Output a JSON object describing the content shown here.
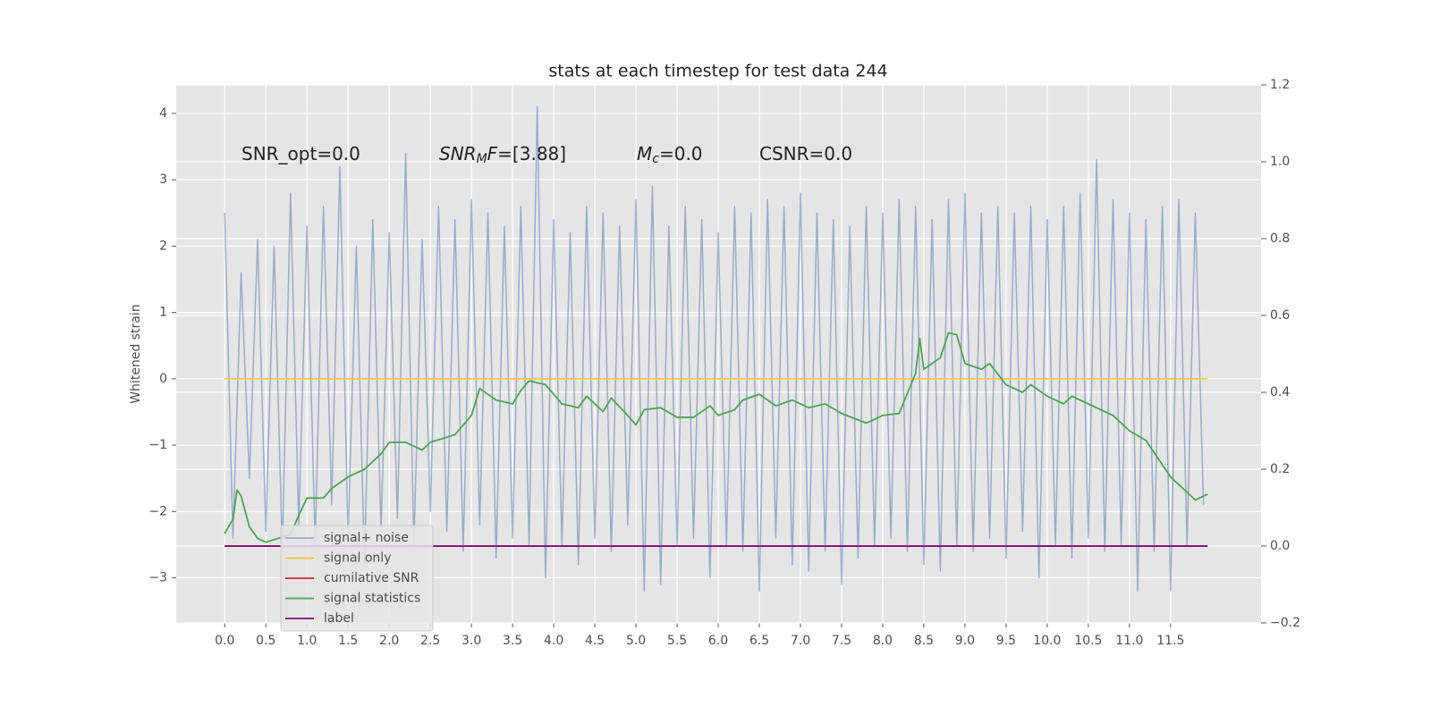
{
  "chart_data": {
    "type": "line",
    "title": "stats at each timestep for test data 244",
    "y_label": "Whitened strain",
    "annotations": [
      [
        {
          "t": "SNR_opt=0.0"
        }
      ],
      [
        {
          "t": "SNR",
          "i": true
        },
        {
          "t": "M",
          "i": true,
          "sub": true
        },
        {
          "t": "F",
          "i": true
        },
        {
          "t": "=[3.88]"
        }
      ],
      [
        {
          "t": "M",
          "i": true
        },
        {
          "t": "c",
          "i": true,
          "sub": true
        },
        {
          "t": "=0.0"
        }
      ],
      [
        {
          "t": "CSNR=0.0"
        }
      ]
    ],
    "xlim": [
      -0.59,
      12.6
    ],
    "ylim": [
      -3.68,
      4.43
    ],
    "y2lim": [
      -0.2,
      1.2
    ],
    "xticks": [
      {
        "value": 0,
        "label": "0.0"
      },
      0.5,
      {
        "value": 1,
        "label": "1.0"
      },
      1.5,
      {
        "value": 2,
        "label": "2.0"
      },
      2.5,
      {
        "value": 3,
        "label": "3.0"
      },
      3.5,
      {
        "value": 4,
        "label": "4.0"
      },
      4.5,
      {
        "value": 5,
        "label": "5.0"
      },
      5.5,
      {
        "value": 6,
        "label": "6.0"
      },
      6.5,
      {
        "value": 7,
        "label": "7.0"
      },
      7.5,
      {
        "value": 8,
        "label": "8.0"
      },
      8.5,
      {
        "value": 9,
        "label": "9.0"
      },
      9.5,
      {
        "value": 10,
        "label": "10.0"
      },
      10.5,
      {
        "value": 11,
        "label": "11.0"
      },
      11.5
    ],
    "yticks": [
      {
        "value": -3,
        "label": "−3"
      },
      {
        "value": -2,
        "label": "−2"
      },
      {
        "value": -1,
        "label": "−1"
      },
      0,
      1,
      2,
      3,
      4
    ],
    "y2ticks": [
      {
        "value": -0.2,
        "label": "−0.2"
      },
      {
        "value": 0,
        "label": "0.0"
      },
      0.2,
      0.4,
      0.6,
      0.8,
      {
        "value": 1,
        "label": "1.0"
      },
      1.2
    ],
    "grid": true,
    "legend": "lower left",
    "series": [
      {
        "name": "signal+ noise",
        "color": "#4c72b0",
        "alpha": 0.5,
        "x": [
          0.0,
          0.1,
          0.2,
          0.3,
          0.4,
          0.5,
          0.6,
          0.7,
          0.8,
          0.9,
          1.0,
          1.1,
          1.2,
          1.3,
          1.4,
          1.5,
          1.6,
          1.7,
          1.8,
          1.9,
          2.0,
          2.1,
          2.2,
          2.3,
          2.4,
          2.5,
          2.6,
          2.7,
          2.8,
          2.9,
          3.0,
          3.1,
          3.2,
          3.3,
          3.4,
          3.5,
          3.6,
          3.7,
          3.8,
          3.9,
          4.0,
          4.1,
          4.2,
          4.3,
          4.4,
          4.5,
          4.6,
          4.7,
          4.8,
          4.9,
          5.0,
          5.1,
          5.2,
          5.3,
          5.4,
          5.5,
          5.6,
          5.7,
          5.8,
          5.9,
          6.0,
          6.1,
          6.2,
          6.3,
          6.4,
          6.5,
          6.6,
          6.7,
          6.8,
          6.9,
          7.0,
          7.1,
          7.2,
          7.3,
          7.4,
          7.5,
          7.6,
          7.7,
          7.8,
          7.9,
          8.0,
          8.1,
          8.2,
          8.3,
          8.4,
          8.5,
          8.6,
          8.7,
          8.8,
          8.9,
          9.0,
          9.1,
          9.2,
          9.3,
          9.4,
          9.5,
          9.6,
          9.7,
          9.8,
          9.9,
          10.0,
          10.1,
          10.2,
          10.3,
          10.4,
          10.5,
          10.6,
          10.7,
          10.8,
          10.9,
          11.0,
          11.1,
          11.2,
          11.3,
          11.4,
          11.5,
          11.6,
          11.7,
          11.8,
          11.9
        ],
        "values": [
          2.5,
          -2.4,
          1.6,
          -1.5,
          2.1,
          -2.3,
          2.0,
          -2.6,
          2.8,
          -2.2,
          2.3,
          -2.5,
          2.6,
          -1.9,
          3.2,
          -2.4,
          2.0,
          -2.8,
          2.4,
          -2.3,
          2.2,
          -2.1,
          3.4,
          -2.5,
          2.1,
          -2.0,
          2.6,
          -2.3,
          2.4,
          -2.6,
          2.7,
          -2.2,
          2.5,
          -2.7,
          2.3,
          -2.4,
          2.6,
          -2.5,
          4.1,
          -3.0,
          2.4,
          -2.5,
          2.2,
          -2.8,
          2.6,
          -2.4,
          2.5,
          -2.6,
          2.3,
          -2.2,
          2.7,
          -3.2,
          2.9,
          -3.1,
          2.3,
          -2.5,
          2.6,
          -2.4,
          2.4,
          -3.0,
          2.2,
          -2.5,
          2.6,
          -2.6,
          2.5,
          -3.2,
          2.7,
          -2.4,
          2.6,
          -2.8,
          2.8,
          -2.9,
          2.5,
          -2.6,
          2.4,
          -3.1,
          2.3,
          -2.7,
          2.6,
          -2.5,
          2.5,
          -2.4,
          2.7,
          -2.6,
          2.6,
          -2.8,
          2.4,
          -2.9,
          2.7,
          -2.5,
          2.8,
          -2.6,
          2.5,
          -2.4,
          2.6,
          -2.7,
          2.5,
          -2.3,
          2.6,
          -3.0,
          2.4,
          -2.5,
          2.6,
          -2.7,
          2.8,
          -2.4,
          3.3,
          -2.6,
          2.7,
          -2.5,
          2.5,
          -3.2,
          2.4,
          -2.6,
          2.6,
          -3.2,
          2.7,
          -2.5,
          2.5,
          -1.9
        ]
      },
      {
        "name": "signal only",
        "color": "#ffc13b",
        "x": [
          0,
          11.95
        ],
        "values": [
          0,
          0
        ]
      },
      {
        "name": "cumilative SNR",
        "color": "#d62728",
        "axis": "y2",
        "x": [
          0,
          11.95
        ],
        "values": [
          0,
          0
        ]
      },
      {
        "name": "signal statistics",
        "color": "#4aa551",
        "axis": "y2",
        "x": [
          0,
          0.1,
          0.15,
          0.2,
          0.3,
          0.4,
          0.5,
          0.8,
          0.9,
          1.0,
          1.2,
          1.3,
          1.5,
          1.7,
          1.9,
          2.0,
          2.2,
          2.4,
          2.5,
          2.8,
          3.0,
          3.1,
          3.3,
          3.5,
          3.6,
          3.7,
          3.9,
          4.1,
          4.3,
          4.4,
          4.6,
          4.7,
          4.9,
          5.0,
          5.1,
          5.3,
          5.5,
          5.7,
          5.9,
          6.0,
          6.2,
          6.3,
          6.5,
          6.7,
          6.9,
          7.1,
          7.3,
          7.5,
          7.8,
          8.0,
          8.2,
          8.4,
          8.45,
          8.5,
          8.7,
          8.8,
          8.9,
          9.0,
          9.2,
          9.3,
          9.5,
          9.7,
          9.8,
          10.0,
          10.2,
          10.3,
          10.5,
          10.8,
          11.0,
          11.2,
          11.5,
          11.8,
          11.95
        ],
        "values": [
          0.033,
          0.07,
          0.146,
          0.13,
          0.05,
          0.02,
          0.01,
          0.03,
          0.08,
          0.125,
          0.125,
          0.15,
          0.18,
          0.2,
          0.24,
          0.27,
          0.27,
          0.25,
          0.27,
          0.29,
          0.34,
          0.41,
          0.38,
          0.37,
          0.405,
          0.43,
          0.42,
          0.37,
          0.36,
          0.39,
          0.35,
          0.385,
          0.34,
          0.315,
          0.355,
          0.36,
          0.335,
          0.335,
          0.365,
          0.34,
          0.355,
          0.38,
          0.395,
          0.365,
          0.38,
          0.36,
          0.37,
          0.345,
          0.32,
          0.34,
          0.345,
          0.45,
          0.54,
          0.46,
          0.49,
          0.555,
          0.55,
          0.475,
          0.46,
          0.475,
          0.42,
          0.4,
          0.42,
          0.39,
          0.37,
          0.39,
          0.37,
          0.34,
          0.3,
          0.275,
          0.18,
          0.12,
          0.135
        ]
      },
      {
        "name": "label",
        "color": "#7b0f7e",
        "axis": "y2",
        "x": [
          0,
          11.95
        ],
        "values": [
          0,
          0
        ]
      }
    ]
  }
}
